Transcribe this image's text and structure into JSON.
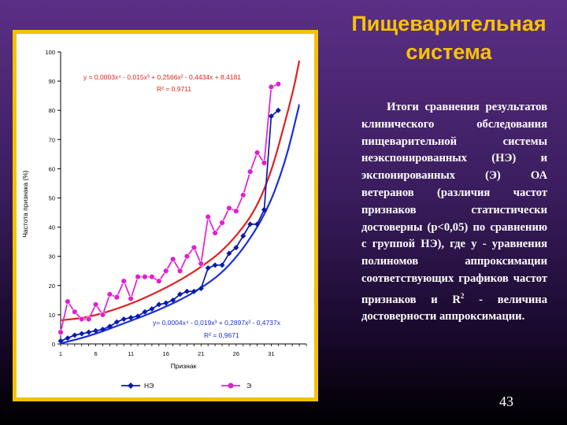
{
  "slide": {
    "title": "Пищеварительная система",
    "body_prefix": "Итоги сравнения результатов клинического обследования пищеварительной системы неэкспонированных (НЭ) и экспонированных (Э) ОА ветеранов (различия частот признаков статистически достоверны (р<0,05) по сравнению с группой НЭ), где y - уравнения полиномов аппроксимации соответствующих графиков частот признаков и R",
    "body_sup": "2",
    "body_suffix": " - величина достоверности аппроксимации.",
    "page_number": "43"
  },
  "colors": {
    "background": "#3a1d5e",
    "title": "#f5c400",
    "frame": "#f2c200",
    "series_ne": "#0a1aa8",
    "series_e": "#e020d0",
    "trend_ne": "#1a2ed8",
    "trend_e": "#e02020",
    "equation_e": "#e02020",
    "equation_ne": "#1a2ed8"
  },
  "chart_data": {
    "type": "line",
    "ylabel": "Частота признака (%)",
    "xlabel": "Признак",
    "ylim": [
      0,
      100
    ],
    "xlim": [
      1,
      36
    ],
    "y_ticks": [
      0,
      10,
      20,
      30,
      40,
      50,
      60,
      70,
      80,
      90,
      100
    ],
    "x_ticks": [
      1,
      6,
      11,
      16,
      21,
      26,
      31
    ],
    "grid": false,
    "legend_position": "bottom",
    "x": [
      1,
      2,
      3,
      4,
      5,
      6,
      7,
      8,
      9,
      10,
      11,
      12,
      13,
      14,
      15,
      16,
      17,
      18,
      19,
      20,
      21,
      22,
      23,
      24,
      25,
      26,
      27,
      28,
      29,
      30,
      31,
      32,
      33
    ],
    "series": [
      {
        "name": "НЭ",
        "marker": "diamond",
        "values": [
          1,
          2,
          3,
          3.5,
          4,
          4.5,
          5,
          6,
          7.5,
          8.5,
          9,
          9.5,
          11,
          12,
          13.5,
          14,
          15,
          17,
          18,
          18,
          19,
          26,
          27,
          27,
          31,
          33,
          37,
          41,
          41,
          46,
          78,
          80,
          null
        ]
      },
      {
        "name": "Э",
        "marker": "circle",
        "values": [
          4,
          14.5,
          11,
          8.5,
          8.5,
          13.5,
          10,
          17,
          16,
          21.5,
          15.5,
          23,
          23,
          23,
          21.5,
          25,
          29,
          25,
          30,
          33,
          27.5,
          43.5,
          38,
          41.5,
          46.5,
          45.5,
          51,
          59,
          65.5,
          62,
          88,
          89,
          null
        ]
      }
    ],
    "trendlines": [
      {
        "series": "Э",
        "equation": "y = 0,0003x⁴ - 0,015x³ + 0,2566x² - 0,4434x + 8,4181",
        "r2": "R² = 0,9711",
        "coefficients": [
          8.4181,
          -0.4434,
          0.2566,
          -0.015,
          0.0003
        ],
        "points": [
          [
            1,
            8.1
          ],
          [
            5,
            9.1
          ],
          [
            10,
            12.7
          ],
          [
            15,
            17.9
          ],
          [
            20,
            24.5
          ],
          [
            25,
            33.5
          ],
          [
            30,
            50
          ],
          [
            34,
            85
          ],
          [
            35,
            97
          ]
        ]
      },
      {
        "series": "НЭ",
        "equation": "y= 0,0004x⁴ - 0,019x³ + 0,2897x² - 0,4737x",
        "r2": "R² = 0,9671",
        "coefficients": [
          0,
          -0.4737,
          0.2897,
          -0.019,
          0.0004
        ],
        "points": [
          [
            1,
            0.2
          ],
          [
            5,
            2.6
          ],
          [
            10,
            7
          ],
          [
            15,
            11.6
          ],
          [
            20,
            17.4
          ],
          [
            25,
            26
          ],
          [
            30,
            43
          ],
          [
            33,
            62
          ],
          [
            35,
            82
          ]
        ]
      }
    ]
  }
}
